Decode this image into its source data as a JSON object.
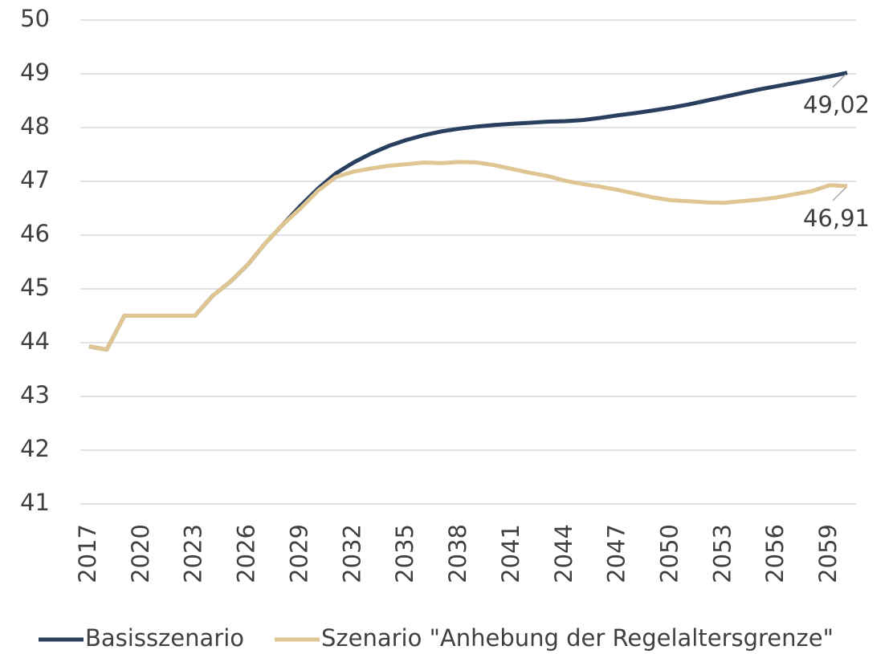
{
  "chart_data": {
    "type": "line",
    "categories": [
      "2017",
      null,
      null,
      "2020",
      null,
      null,
      "2023",
      null,
      null,
      "2026",
      null,
      null,
      "2029",
      null,
      null,
      "2032",
      null,
      null,
      "2035",
      null,
      null,
      "2038",
      null,
      null,
      "2041",
      null,
      null,
      "2044",
      null,
      null,
      "2047",
      null,
      null,
      "2050",
      null,
      null,
      "2053",
      null,
      null,
      "2056",
      null,
      null,
      "2059",
      null
    ],
    "series": [
      {
        "name": "Basisszenario",
        "color": "#283f5e",
        "values": [
          43.93,
          43.87,
          44.5,
          44.5,
          44.5,
          44.5,
          44.5,
          44.87,
          45.13,
          45.45,
          45.85,
          46.2,
          46.55,
          46.87,
          47.15,
          47.35,
          47.52,
          47.66,
          47.77,
          47.86,
          47.93,
          47.98,
          48.02,
          48.05,
          48.07,
          48.09,
          48.11,
          48.12,
          48.14,
          48.18,
          48.23,
          48.27,
          48.32,
          48.37,
          48.43,
          48.5,
          48.57,
          48.64,
          48.71,
          48.77,
          48.83,
          48.89,
          48.95,
          49.02
        ],
        "value_labels": [
          null,
          null,
          null,
          null,
          null,
          null,
          null,
          null,
          null,
          null,
          null,
          null,
          null,
          null,
          null,
          null,
          null,
          null,
          null,
          null,
          null,
          null,
          null,
          null,
          null,
          null,
          null,
          null,
          null,
          null,
          null,
          null,
          null,
          null,
          null,
          null,
          null,
          null,
          null,
          null,
          null,
          null,
          null,
          "49,02"
        ]
      },
      {
        "name": "Szenario \"Anhebung der Regelaltersgrenze\"",
        "color": "#dfc591",
        "values": [
          43.93,
          43.87,
          44.5,
          44.5,
          44.5,
          44.5,
          44.5,
          44.87,
          45.13,
          45.45,
          45.85,
          46.2,
          46.5,
          46.83,
          47.08,
          47.18,
          47.24,
          47.29,
          47.32,
          47.35,
          47.34,
          47.36,
          47.35,
          47.3,
          47.23,
          47.16,
          47.1,
          47.01,
          46.95,
          46.9,
          46.84,
          46.77,
          46.7,
          46.65,
          46.63,
          46.61,
          46.6,
          46.63,
          46.66,
          46.7,
          46.76,
          46.82,
          46.93,
          46.91
        ],
        "value_labels": [
          null,
          null,
          null,
          null,
          null,
          null,
          null,
          null,
          null,
          null,
          null,
          null,
          null,
          null,
          null,
          null,
          null,
          null,
          null,
          null,
          null,
          null,
          null,
          null,
          null,
          null,
          null,
          null,
          null,
          null,
          null,
          null,
          null,
          null,
          null,
          null,
          null,
          null,
          null,
          null,
          null,
          null,
          null,
          "46,91"
        ]
      }
    ],
    "ylim": [
      41,
      50
    ],
    "yticks": [
      41,
      42,
      43,
      44,
      45,
      46,
      47,
      48,
      49,
      50
    ],
    "grid": true,
    "legend": "bottom"
  }
}
